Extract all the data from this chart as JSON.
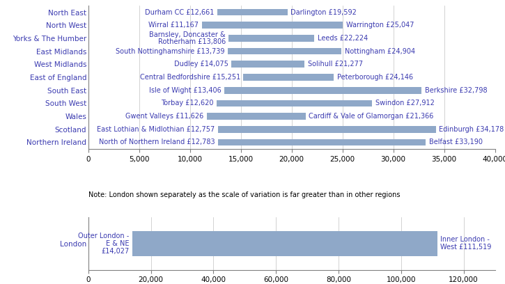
{
  "regions": [
    "North East",
    "North West",
    "Yorks & The Humber",
    "East Midlands",
    "West Midlands",
    "East of England",
    "South East",
    "South West",
    "Wales",
    "Scotland",
    "Northern Ireland"
  ],
  "min_vals": [
    12661,
    11167,
    13806,
    13739,
    14075,
    15251,
    13406,
    12620,
    11626,
    12757,
    12783
  ],
  "max_vals": [
    19592,
    25047,
    22224,
    24904,
    21277,
    24146,
    32798,
    27912,
    21366,
    34178,
    33190
  ],
  "min_labels": [
    "Durham CC £12,661",
    "Wirral £11,167",
    "Barnsley, Doncaster &\nRotherham £13,806",
    "South Nottinghamshire £13,739",
    "Dudley £14,075",
    "Central Bedfordshire £15,251",
    "Isle of Wight £13,406",
    "Torbay £12,620",
    "Gwent Valleys £11,626",
    "East Lothian & Midlothian £12,757",
    "North of Northern Ireland £12,783"
  ],
  "max_labels": [
    "Darlington £19,592",
    "Warrington £25,047",
    "Leeds £22,224",
    "Nottingham £24,904",
    "Solihull £21,277",
    "Peterborough £24,146",
    "Berkshire £32,798",
    "Swindon £27,912",
    "Cardiff & Vale of Glamorgan £21,366",
    "Edinburgh £34,178",
    "Belfast £33,190"
  ],
  "london_min_val": 14027,
  "london_max_val": 111519,
  "london_min_label": "Outer London -\nE & NE\n£14,027",
  "london_max_label": "Inner London -\nWest £111,519",
  "bar_color": "#8fa8c8",
  "note_text": "Note: London shown separately as the scale of variation is far greater than in other regions",
  "label_fontsize": 7.0,
  "axis_fontsize": 7.5,
  "region_fontsize": 7.5,
  "text_color": "#3a3ab0",
  "region_color": "#3a3ab0"
}
